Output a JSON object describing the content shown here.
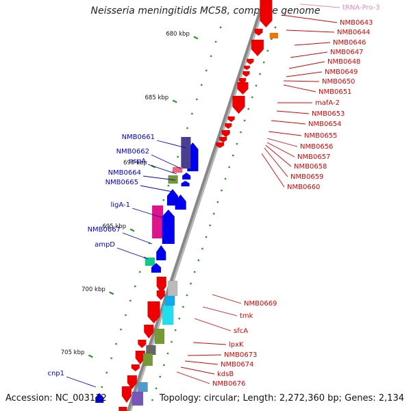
{
  "title": "Neisseria meningitidis MC58, complete genome",
  "footer": {
    "accession": "Accession: NC_003112",
    "topology": "Topology: circular; Length: 2,272,360 bp; Genes: 2,134"
  },
  "colors": {
    "forward": "#ee0000",
    "reverse": "#0000ee",
    "backbone": "#888888",
    "tick": "#229922",
    "trna": "#ee88bb",
    "forward_label": "#dd0000",
    "reverse_label": "#0000cc"
  },
  "ruler": [
    {
      "label": "680 kbp"
    },
    {
      "label": "685 kbp"
    },
    {
      "label": "690 kbp"
    },
    {
      "label": "695 kbp"
    },
    {
      "label": "700 kbp"
    },
    {
      "label": "705 kbp"
    }
  ],
  "right_labels": [
    {
      "text": "tRNA-Pro-3",
      "kind": "trna"
    },
    {
      "text": "NMB0643"
    },
    {
      "text": "NMB0644"
    },
    {
      "text": "NMB0646"
    },
    {
      "text": "NMB0647"
    },
    {
      "text": "NMB0648"
    },
    {
      "text": "NMB0649"
    },
    {
      "text": "NMB0650"
    },
    {
      "text": "NMB0651"
    },
    {
      "text": "mafA-2"
    },
    {
      "text": "NMB0653"
    },
    {
      "text": "NMB0654"
    },
    {
      "text": "NMB0655"
    },
    {
      "text": "NMB0656"
    },
    {
      "text": "NMB0657"
    },
    {
      "text": "NMB0658"
    },
    {
      "text": "NMB0659"
    },
    {
      "text": "NMB0660"
    },
    {
      "text": "NMB0669"
    },
    {
      "text": "tmk"
    },
    {
      "text": "sfcA"
    },
    {
      "text": "lpxK"
    },
    {
      "text": "NMB0673"
    },
    {
      "text": "NMB0674"
    },
    {
      "text": "kdsB"
    },
    {
      "text": "NMB0676"
    }
  ],
  "left_labels": [
    {
      "text": "NMB0661"
    },
    {
      "text": "NMB0662"
    },
    {
      "text": "nspA"
    },
    {
      "text": "NMB0664"
    },
    {
      "text": "NMB0665"
    },
    {
      "text": "ligA-1"
    },
    {
      "text": "NMB0667"
    },
    {
      "text": "ampD"
    },
    {
      "text": "cnp1"
    }
  ]
}
